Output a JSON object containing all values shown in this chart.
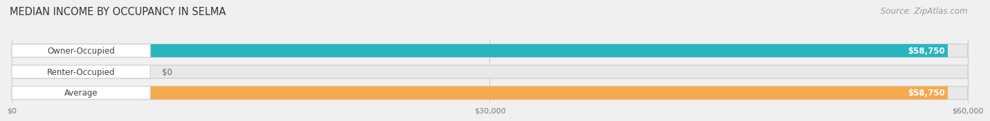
{
  "title": "MEDIAN INCOME BY OCCUPANCY IN SELMA",
  "source": "Source: ZipAtlas.com",
  "categories": [
    "Owner-Occupied",
    "Renter-Occupied",
    "Average"
  ],
  "values": [
    58750,
    0,
    58750
  ],
  "bar_colors": [
    "#29b5be",
    "#c4a8d0",
    "#f5a94e"
  ],
  "label_values": [
    "$58,750",
    "$0",
    "$58,750"
  ],
  "xlim": [
    0,
    60000
  ],
  "xticks": [
    0,
    30000,
    60000
  ],
  "xtick_labels": [
    "$0",
    "$30,000",
    "$60,000"
  ],
  "background_color": "#f0f0f0",
  "bar_bg_color": "#e8e8e8",
  "title_fontsize": 10.5,
  "source_fontsize": 8.5,
  "cat_fontsize": 8.5,
  "val_fontsize": 8.5
}
